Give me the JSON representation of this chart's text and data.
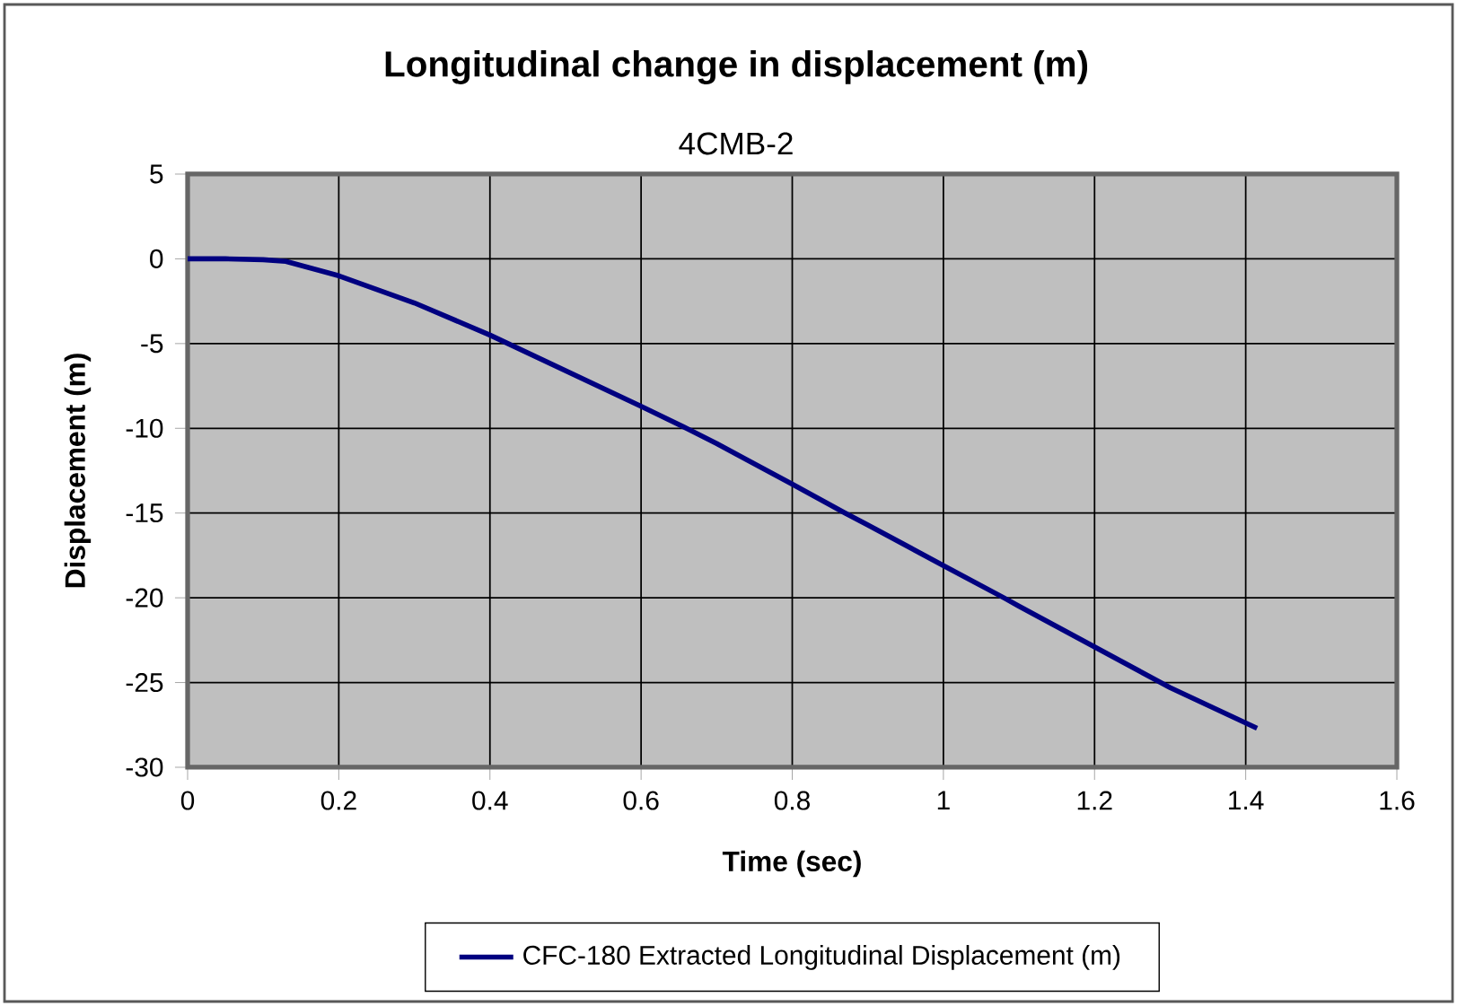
{
  "chart_data": {
    "type": "line",
    "title": "Longitudinal change in displacement (m)",
    "subtitle": "4CMB-2",
    "xlabel": "Time (sec)",
    "ylabel": "Displacement (m)",
    "x": [
      0,
      0.05,
      0.1,
      0.13,
      0.2,
      0.3,
      0.4,
      0.5,
      0.6,
      0.66,
      0.7,
      0.8,
      0.87,
      0.9,
      1.0,
      1.08,
      1.1,
      1.2,
      1.3,
      1.415
    ],
    "series": [
      {
        "name": "CFC-180 Extracted Longitudinal Displacement (m)",
        "color": "#000080",
        "values": [
          0,
          0,
          -0.05,
          -0.15,
          -1.0,
          -2.6,
          -4.5,
          -6.6,
          -8.7,
          -10,
          -10.9,
          -13.3,
          -15,
          -15.7,
          -18.1,
          -20,
          -20.5,
          -22.9,
          -25.3,
          -27.7
        ]
      }
    ],
    "xlim": [
      0,
      1.6
    ],
    "xticks": [
      0,
      0.2,
      0.4,
      0.6,
      0.8,
      1,
      1.2,
      1.4,
      1.6
    ],
    "ylim": [
      -30,
      5
    ],
    "yticks": [
      -30,
      -25,
      -20,
      -15,
      -10,
      -5,
      0,
      5
    ],
    "grid": true,
    "legend": "bottom"
  }
}
